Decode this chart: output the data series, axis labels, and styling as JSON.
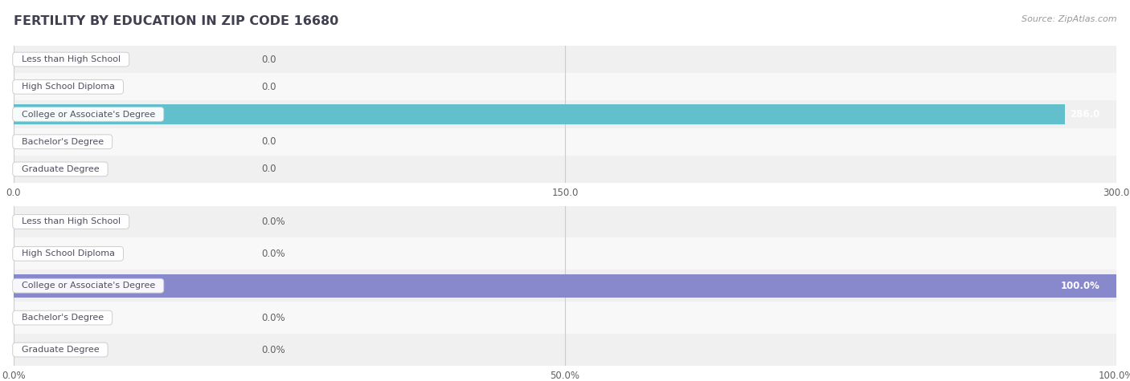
{
  "title": "FERTILITY BY EDUCATION IN ZIP CODE 16680",
  "source": "Source: ZipAtlas.com",
  "categories": [
    "Less than High School",
    "High School Diploma",
    "College or Associate's Degree",
    "Bachelor's Degree",
    "Graduate Degree"
  ],
  "values_abs": [
    0.0,
    0.0,
    286.0,
    0.0,
    0.0
  ],
  "values_pct": [
    0.0,
    0.0,
    100.0,
    0.0,
    0.0
  ],
  "abs_max": 300.0,
  "pct_max": 100.0,
  "abs_ticks": [
    0.0,
    150.0,
    300.0
  ],
  "pct_ticks": [
    0.0,
    50.0,
    100.0
  ],
  "bar_color_teal": "#62c0cc",
  "bar_color_purple": "#8888cc",
  "row_bg_even": "#f0f0f0",
  "row_bg_odd": "#f8f8f8",
  "title_color": "#404050",
  "source_color": "#999999",
  "label_text_color": "#505060",
  "value_text_color": "#606060",
  "grid_color": "#cccccc",
  "figsize": [
    14.06,
    4.75
  ]
}
